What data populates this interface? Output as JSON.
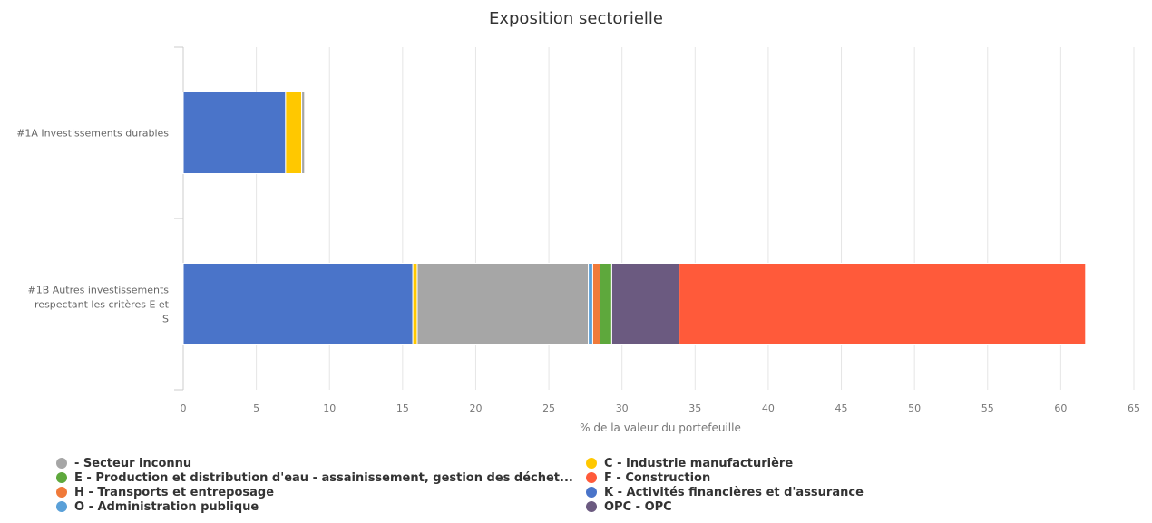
{
  "chart_data": {
    "type": "bar",
    "orientation": "horizontal",
    "stacked": true,
    "title": "Exposition sectorielle",
    "xlabel": "% de la valeur du portefeuille",
    "xlim": [
      0,
      65
    ],
    "xticks": [
      0,
      5,
      10,
      15,
      20,
      25,
      30,
      35,
      40,
      45,
      50,
      55,
      60,
      65
    ],
    "grid": true,
    "legend_position": "bottom",
    "categories": [
      "#1A Investissements durables",
      "#1B Autres investissements respectant les critères E et S"
    ],
    "series": [
      {
        "name": "K - Activités financières et d'assurance",
        "color": "#4a74c9",
        "values": [
          7.0,
          15.7
        ]
      },
      {
        "name": "C - Industrie manufacturière",
        "color": "#ffc800",
        "values": [
          1.1,
          0.3
        ]
      },
      {
        "name": " - Secteur inconnu",
        "color": "#a6a6a6",
        "values": [
          0.2,
          11.7
        ]
      },
      {
        "name": "O - Administration publique",
        "color": "#5aa0d8",
        "values": [
          0.0,
          0.3
        ]
      },
      {
        "name": "H - Transports et entreposage",
        "color": "#f07a3a",
        "values": [
          0.0,
          0.5
        ]
      },
      {
        "name": "E - Production et distribution d'eau - assainissement, gestion des déchet...",
        "color": "#5ea83c",
        "values": [
          0.0,
          0.8
        ]
      },
      {
        "name": "OPC - OPC",
        "color": "#6b5a80",
        "values": [
          0.0,
          4.6
        ]
      },
      {
        "name": "F - Construction",
        "color": "#ff5a3a",
        "values": [
          0.0,
          27.8
        ]
      }
    ]
  },
  "legend": [
    {
      "label": " - Secteur inconnu",
      "color": "#a6a6a6"
    },
    {
      "label": "C - Industrie manufacturière",
      "color": "#ffc800"
    },
    {
      "label": "E - Production et distribution d'eau - assainissement, gestion des déchet...",
      "color": "#5ea83c"
    },
    {
      "label": "F - Construction",
      "color": "#ff5a3a"
    },
    {
      "label": "H - Transports et entreposage",
      "color": "#f07a3a"
    },
    {
      "label": "K - Activités financières et d'assurance",
      "color": "#4a74c9"
    },
    {
      "label": "O - Administration publique",
      "color": "#5aa0d8"
    },
    {
      "label": "OPC - OPC",
      "color": "#6b5a80"
    }
  ]
}
